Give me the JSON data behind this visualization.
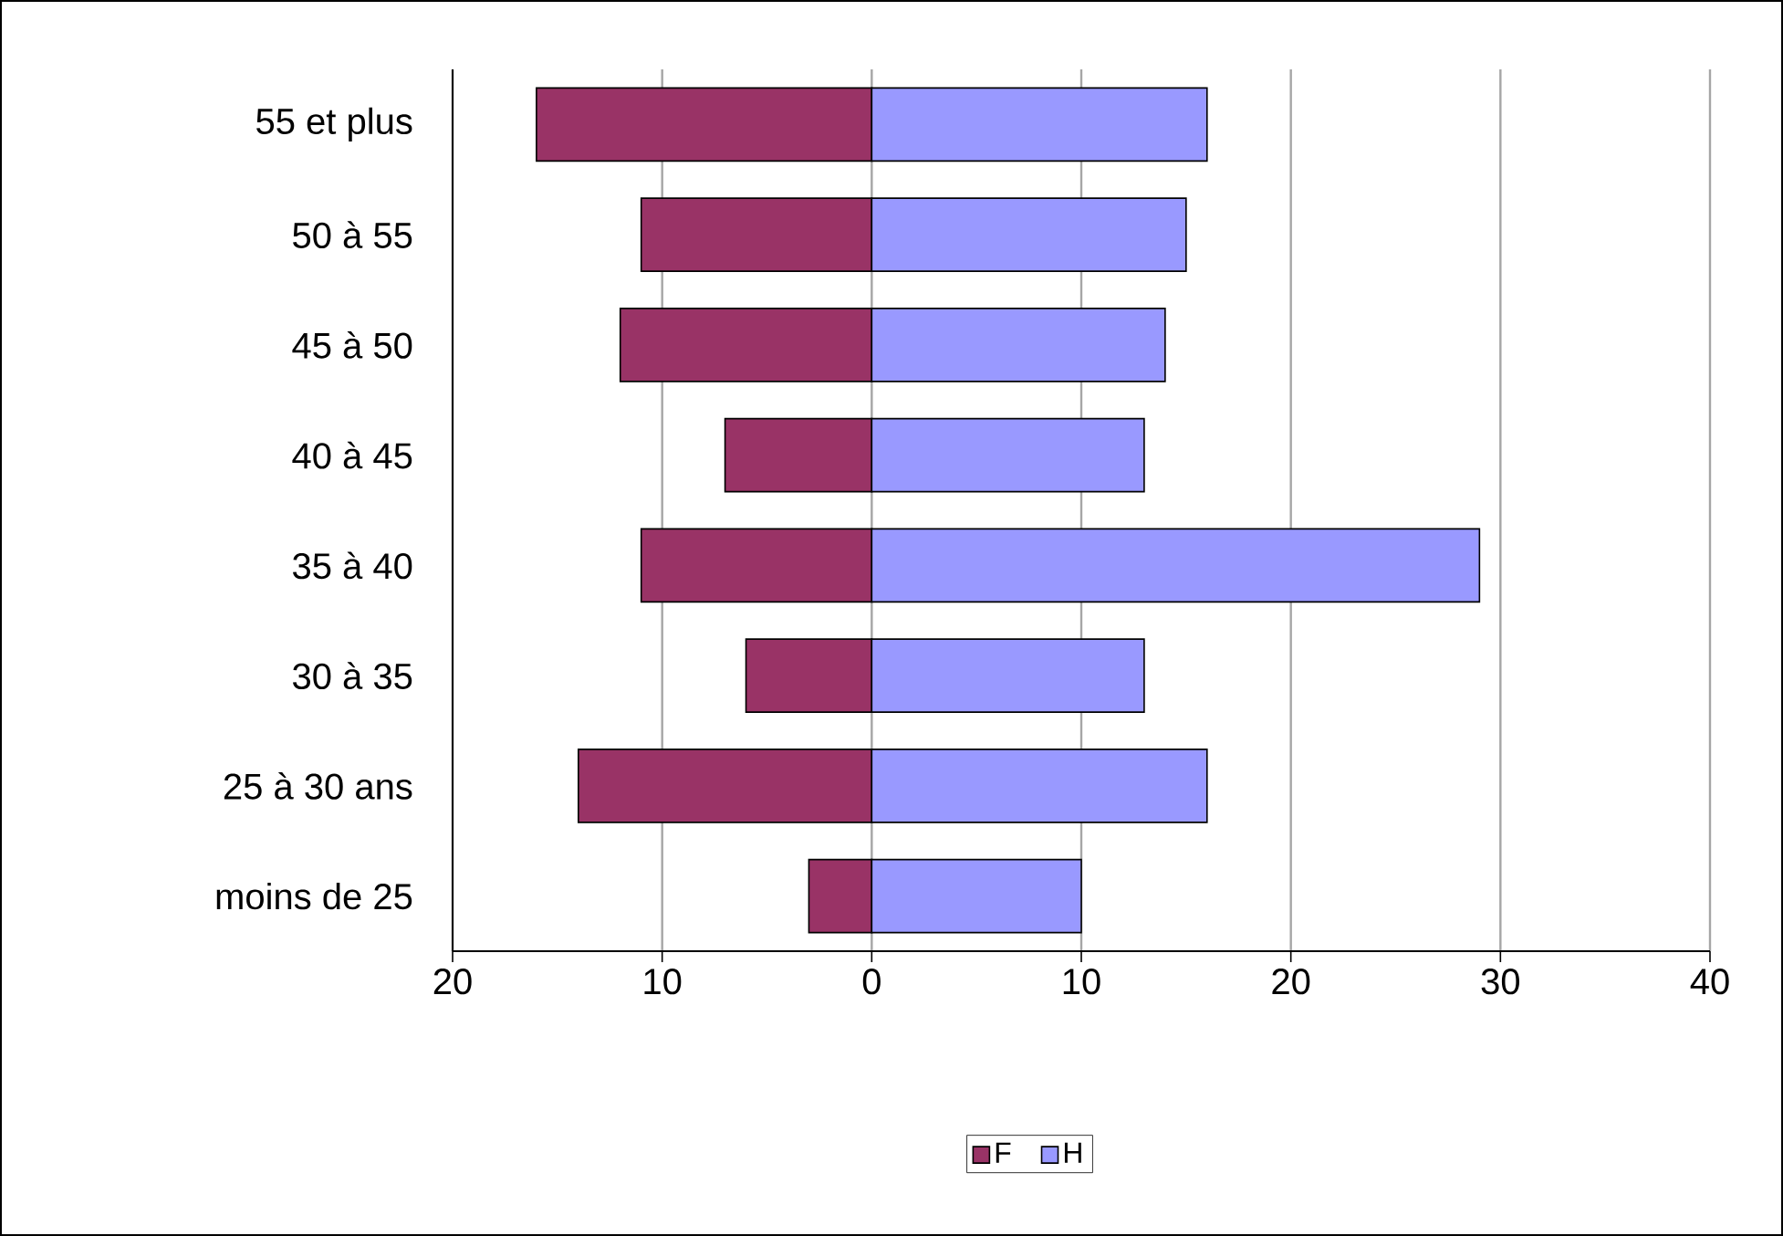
{
  "chart_data": {
    "type": "bar",
    "orientation": "horizontal",
    "categories": [
      "55 et plus",
      "50 à 55",
      "45 à 50",
      "40 à 45",
      "35 à 40",
      "30 à 35",
      "25 à 30 ans",
      "moins de 25"
    ],
    "series": [
      {
        "name": "F",
        "color": "#993366",
        "values": [
          -16,
          -11,
          -12,
          -7,
          -11,
          -6,
          -14,
          -3
        ]
      },
      {
        "name": "H",
        "color": "#9999ff",
        "values": [
          16,
          15,
          14,
          13,
          29,
          13,
          16,
          10
        ]
      }
    ],
    "xlim": [
      -20,
      40
    ],
    "xticks": [
      {
        "value": -20,
        "label": "20"
      },
      {
        "value": -10,
        "label": "10"
      },
      0,
      10,
      20,
      30,
      40
    ],
    "grid": "x",
    "legend": "bottom",
    "stacked": true
  }
}
